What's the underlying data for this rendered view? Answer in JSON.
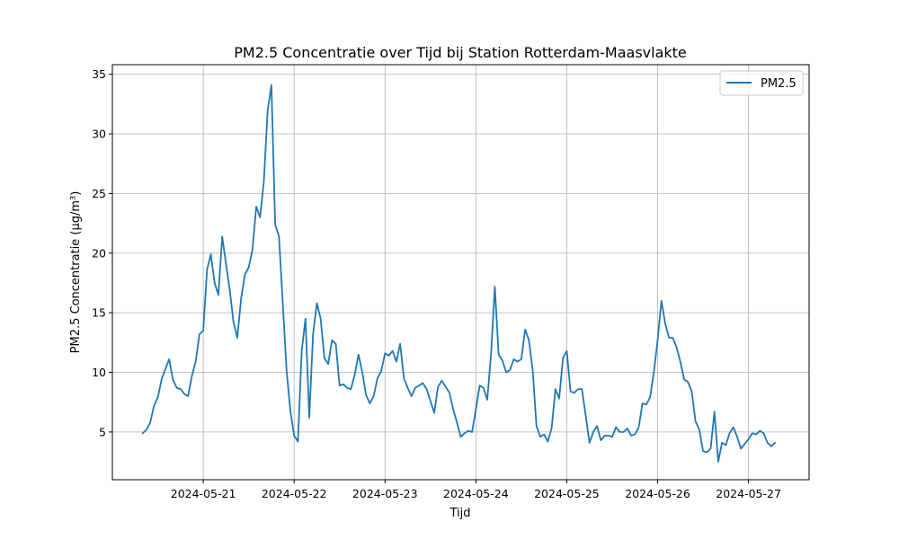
{
  "chart_data": {
    "type": "line",
    "title": "PM2.5 Concentratie over Tijd bij Station Rotterdam-Maasvlakte",
    "xlabel": "Tijd",
    "ylabel": "PM2.5 Concentratie (µg/m³)",
    "grid": true,
    "legend_placement": "top-right",
    "line_color": "#1f77b4",
    "xlim": [
      "2024-05-20 00:00",
      "2024-05-27 16:00"
    ],
    "ylim": [
      1.0,
      35.8
    ],
    "x_ticks": [
      "2024-05-21",
      "2024-05-22",
      "2024-05-23",
      "2024-05-24",
      "2024-05-25",
      "2024-05-26",
      "2024-05-27"
    ],
    "y_ticks": [
      5,
      10,
      15,
      20,
      25,
      30,
      35
    ],
    "x_step_hours": 1,
    "series": [
      {
        "name": "PM2.5",
        "x_start": "2024-05-20 08:00",
        "x_step_hours": 1,
        "values": [
          4.9,
          5.2,
          5.8,
          7.2,
          7.9,
          9.4,
          10.3,
          11.1,
          9.4,
          8.7,
          8.6,
          8.2,
          8.0,
          9.7,
          10.9,
          13.2,
          13.5,
          18.6,
          19.9,
          17.5,
          16.5,
          21.4,
          19.1,
          16.9,
          14.2,
          12.9,
          16.2,
          18.2,
          18.8,
          20.3,
          23.9,
          23.0,
          26.0,
          31.9,
          34.1,
          22.4,
          21.4,
          15.8,
          10.2,
          6.8,
          4.7,
          4.2,
          11.8,
          14.5,
          6.2,
          13.2,
          15.8,
          14.5,
          11.2,
          10.7,
          12.7,
          12.4,
          8.9,
          9.0,
          8.7,
          8.6,
          9.8,
          11.5,
          10.0,
          8.1,
          7.4,
          8.0,
          9.5,
          10.1,
          11.6,
          11.4,
          11.8,
          10.9,
          12.4,
          9.5,
          8.7,
          8.0,
          8.7,
          8.9,
          9.1,
          8.6,
          7.6,
          6.6,
          8.8,
          9.3,
          8.8,
          8.3,
          6.9,
          5.8,
          4.6,
          4.9,
          5.1,
          5.0,
          6.9,
          8.9,
          8.7,
          7.7,
          11.5,
          17.2,
          11.5,
          11.0,
          10.0,
          10.2,
          11.1,
          10.9,
          11.1,
          13.6,
          12.7,
          10.2,
          5.5,
          4.6,
          4.8,
          4.2,
          5.3,
          8.6,
          7.8,
          11.2,
          11.8,
          8.4,
          8.3,
          8.6,
          8.6,
          6.4,
          4.1,
          5.0,
          5.5,
          4.3,
          4.7,
          4.7,
          4.6,
          5.4,
          5.0,
          5.0,
          5.3,
          4.7,
          4.8,
          5.4,
          7.4,
          7.3,
          7.9,
          10.0,
          12.7,
          16.0,
          14.1,
          12.9,
          12.9,
          12.1,
          10.9,
          9.4,
          9.2,
          8.4,
          5.9,
          5.2,
          3.4,
          3.3,
          3.6,
          6.7,
          2.5,
          4.1,
          3.9,
          4.9,
          5.4,
          4.6,
          3.6,
          4.0,
          4.4,
          4.9,
          4.8,
          5.1,
          4.9,
          4.1,
          3.8,
          4.1
        ]
      }
    ]
  }
}
